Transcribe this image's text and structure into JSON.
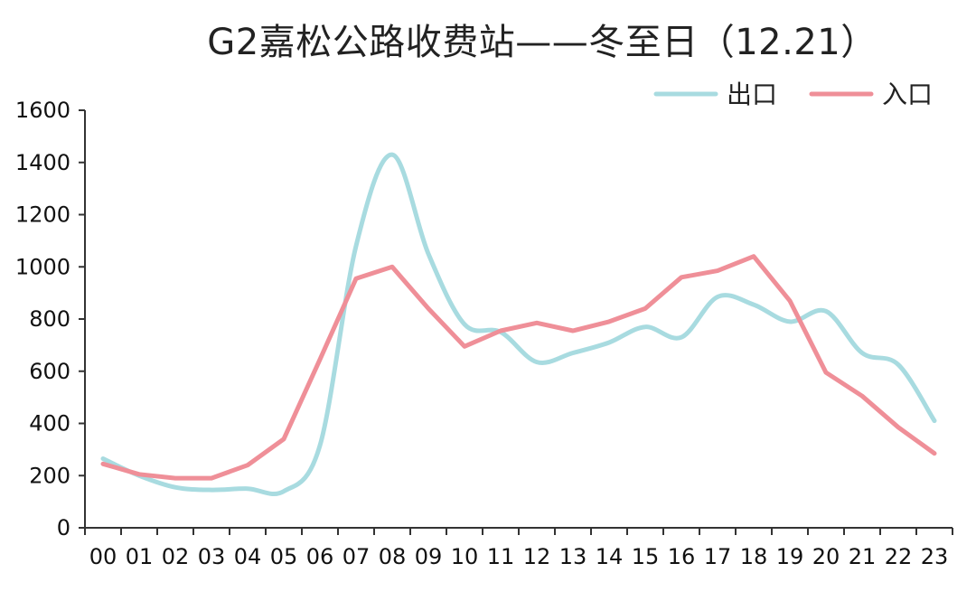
{
  "chart_data": {
    "type": "line",
    "title": "G2嘉松公路收费站——冬至日（12.21）",
    "categories": [
      "00",
      "01",
      "02",
      "03",
      "04",
      "05",
      "06",
      "07",
      "08",
      "09",
      "10",
      "11",
      "12",
      "13",
      "14",
      "15",
      "16",
      "17",
      "18",
      "19",
      "20",
      "21",
      "22",
      "23"
    ],
    "series": [
      {
        "name": "出口",
        "color": "#a8dbe0",
        "values": [
          265,
          200,
          155,
          145,
          150,
          140,
          315,
          1080,
          1430,
          1050,
          780,
          750,
          635,
          670,
          710,
          770,
          730,
          885,
          855,
          790,
          830,
          670,
          625,
          410
        ]
      },
      {
        "name": "入口",
        "color": "#ef8f98",
        "values": [
          245,
          205,
          190,
          190,
          240,
          340,
          645,
          955,
          1000,
          840,
          695,
          755,
          785,
          755,
          790,
          840,
          960,
          985,
          1040,
          870,
          595,
          505,
          385,
          285
        ]
      }
    ],
    "ylim": [
      0,
      1600
    ],
    "yticks": [
      0,
      200,
      400,
      600,
      800,
      1000,
      1200,
      1400,
      1600
    ],
    "legend_position": "top-right",
    "grid": false
  }
}
